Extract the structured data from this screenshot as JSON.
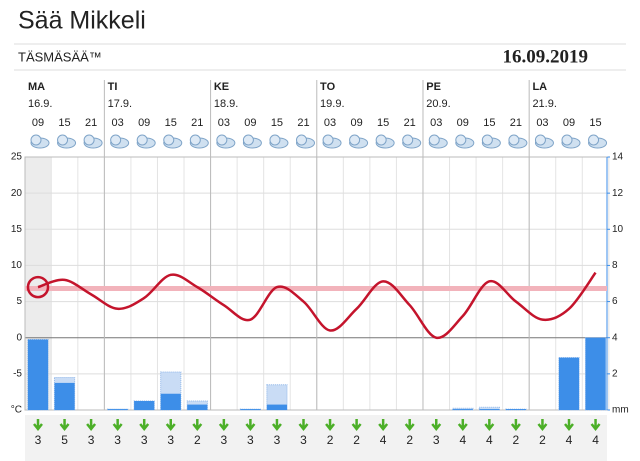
{
  "header": {
    "title": "Sää Mikkeli",
    "subtitle": "TÄSMÄSÄÄ™",
    "date": "16.09.2019"
  },
  "days": [
    {
      "name": "MA",
      "date": "16.9.",
      "column": 0
    },
    {
      "name": "TI",
      "date": "17.9.",
      "column": 3
    },
    {
      "name": "KE",
      "date": "18.9.",
      "column": 7
    },
    {
      "name": "TO",
      "date": "19.9.",
      "column": 11
    },
    {
      "name": "PE",
      "date": "20.9.",
      "column": 15
    },
    {
      "name": "LA",
      "date": "21.9.",
      "column": 19
    }
  ],
  "chart_data": {
    "type": "line",
    "categories": [
      "09",
      "15",
      "21",
      "03",
      "09",
      "15",
      "21",
      "03",
      "09",
      "15",
      "21",
      "03",
      "09",
      "15",
      "21",
      "03",
      "09",
      "15",
      "21",
      "03",
      "09",
      "15"
    ],
    "series": [
      {
        "name": "temperature",
        "color": "#c4142c",
        "values": [
          7,
          8,
          6,
          4,
          5.5,
          8.7,
          7,
          4.5,
          2.5,
          7,
          5,
          1,
          4,
          7.8,
          4.5,
          0,
          3,
          7.8,
          5,
          2.5,
          4,
          9
        ]
      },
      {
        "name": "precipitation",
        "type": "bar",
        "axis": "y2",
        "color": "#3d8ee8",
        "values": [
          3.9,
          1.5,
          0,
          0.05,
          0.5,
          0.9,
          0.3,
          0,
          0.05,
          0.3,
          0,
          0,
          0,
          0,
          0,
          0,
          0.05,
          0.05,
          0.05,
          0,
          2.9,
          4
        ],
        "max": [
          3.9,
          1.8,
          0,
          0.05,
          0.5,
          2.1,
          0.5,
          0,
          0.05,
          1.4,
          0,
          0,
          0,
          0,
          0,
          0,
          0.1,
          0.15,
          0.05,
          0,
          2.9,
          4
        ]
      }
    ],
    "reference": 6.8,
    "ylim": [
      -10,
      25
    ],
    "yticks": [
      {
        "value": -10,
        "label": "°C"
      },
      -5,
      0,
      5,
      10,
      15,
      20,
      25
    ],
    "y2lim": [
      0,
      14
    ],
    "y2ticks": [
      {
        "value": 0,
        "label": "mm"
      },
      2,
      4,
      6,
      8,
      10,
      12,
      14
    ],
    "wind": [
      3,
      5,
      3,
      3,
      3,
      3,
      2,
      3,
      3,
      3,
      3,
      2,
      2,
      4,
      2,
      3,
      4,
      4,
      2,
      2,
      4,
      4
    ],
    "grid": true
  }
}
